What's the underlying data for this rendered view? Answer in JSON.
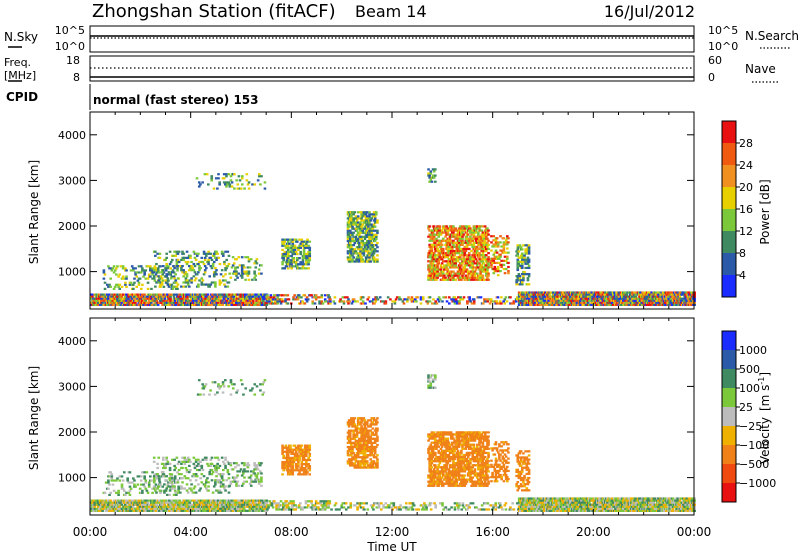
{
  "header": {
    "station": "Zhongshan Station (fitACF)",
    "beam": "Beam 14",
    "date": "16/Jul/2012"
  },
  "chart_data": [
    {
      "type": "line",
      "panel": "sky-search",
      "left_label": "N.Sky",
      "right_label": "N.Search",
      "left_ticks": [
        "10^5",
        "10^0"
      ],
      "right_ticks": [
        "10^5",
        "10^0"
      ],
      "line_style": "solid (N.Sky), dotted (N.Search)"
    },
    {
      "type": "line",
      "panel": "freq-nave",
      "left_label_top": "Freq.",
      "left_label_unit": "[MHz]",
      "right_label": "Nave",
      "left_ticks": [
        "18",
        "8"
      ],
      "right_ticks": [
        "60",
        "0"
      ]
    },
    {
      "type": "table",
      "panel": "cpid",
      "label": "CPID",
      "value": "normal (fast stereo) 153"
    },
    {
      "type": "heatmap",
      "panel": "power",
      "ylabel": "Slant Range [km]",
      "ylim": [
        180,
        4500
      ],
      "yticks": [
        "1000",
        "2000",
        "3000",
        "4000"
      ],
      "x": [
        "00:00",
        "04:00",
        "08:00",
        "12:00",
        "16:00",
        "20:00",
        "00:00"
      ],
      "xlim_hours": [
        0,
        24
      ],
      "colorbar_label": "Power [dB]",
      "colorbar_ticks": [
        "4",
        "8",
        "12",
        "16",
        "20",
        "24",
        "28"
      ],
      "colorbar_range": [
        0,
        32
      ],
      "colorbar_colors": [
        "#1a2cff",
        "#2b5aa8",
        "#3f8a60",
        "#7bc83a",
        "#e8d000",
        "#f09020",
        "#f05a10",
        "#e81010"
      ]
    },
    {
      "type": "heatmap",
      "panel": "velocity",
      "ylabel": "Slant Range [km]",
      "ylim": [
        180,
        4500
      ],
      "yticks": [
        "1000",
        "2000",
        "3000",
        "4000"
      ],
      "x": [
        "00:00",
        "04:00",
        "08:00",
        "12:00",
        "16:00",
        "20:00",
        "00:00"
      ],
      "xlim_hours": [
        0,
        24
      ],
      "xlabel": "Time UT",
      "colorbar_label": "Velocity",
      "colorbar_unit_base": "[m s",
      "colorbar_unit_exp": "-1",
      "colorbar_unit_close": "]",
      "colorbar_ticks": [
        "1000",
        "500",
        "100",
        "25",
        "−25",
        "−100",
        "−500",
        "−1000"
      ],
      "colorbar_colors": [
        "#1a2cff",
        "#2b5aa8",
        "#3f8a60",
        "#7bc83a",
        "#bcbcbc",
        "#f0b000",
        "#f08018",
        "#f04a10",
        "#e81010"
      ]
    }
  ]
}
